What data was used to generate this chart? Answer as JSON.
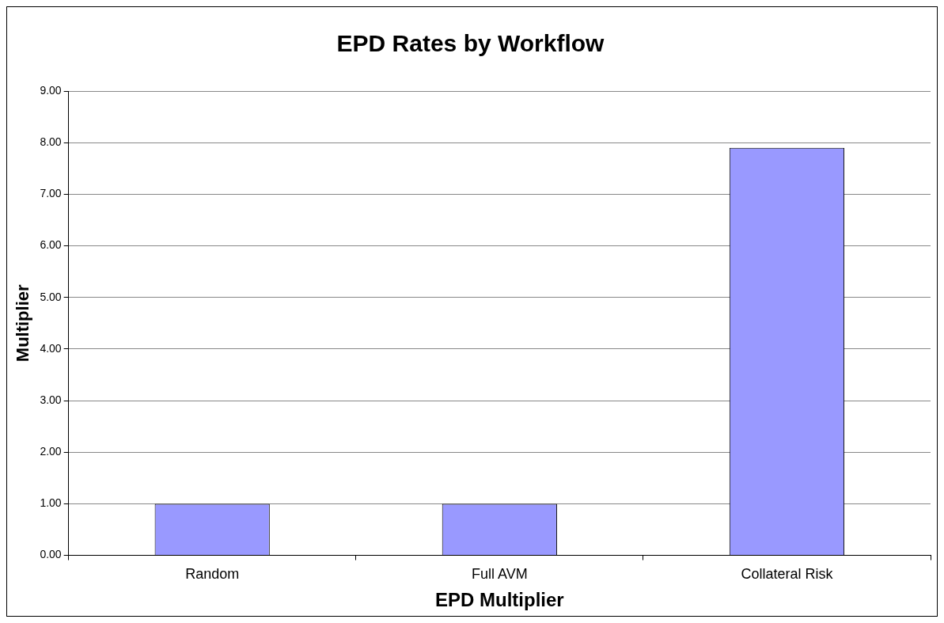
{
  "chart_data": {
    "type": "bar",
    "title": "EPD Rates by Workflow",
    "xlabel": "EPD Multiplier",
    "ylabel": "Multiplier",
    "categories": [
      "Random",
      "Full AVM",
      "Collateral Risk"
    ],
    "values": [
      1.0,
      1.0,
      7.9
    ],
    "color": "#9999ff",
    "ylim": [
      0,
      9
    ],
    "yticks": [
      {
        "value": 0,
        "label": "0.00"
      },
      {
        "value": 1,
        "label": "1.00"
      },
      {
        "value": 2,
        "label": "2.00"
      },
      {
        "value": 3,
        "label": "3.00"
      },
      {
        "value": 4,
        "label": "4.00"
      },
      {
        "value": 5,
        "label": "5.00"
      },
      {
        "value": 6,
        "label": "6.00"
      },
      {
        "value": 7,
        "label": "7.00"
      },
      {
        "value": 8,
        "label": "8.00"
      },
      {
        "value": 9,
        "label": "9.00"
      }
    ],
    "grid": "y",
    "legend": false
  }
}
